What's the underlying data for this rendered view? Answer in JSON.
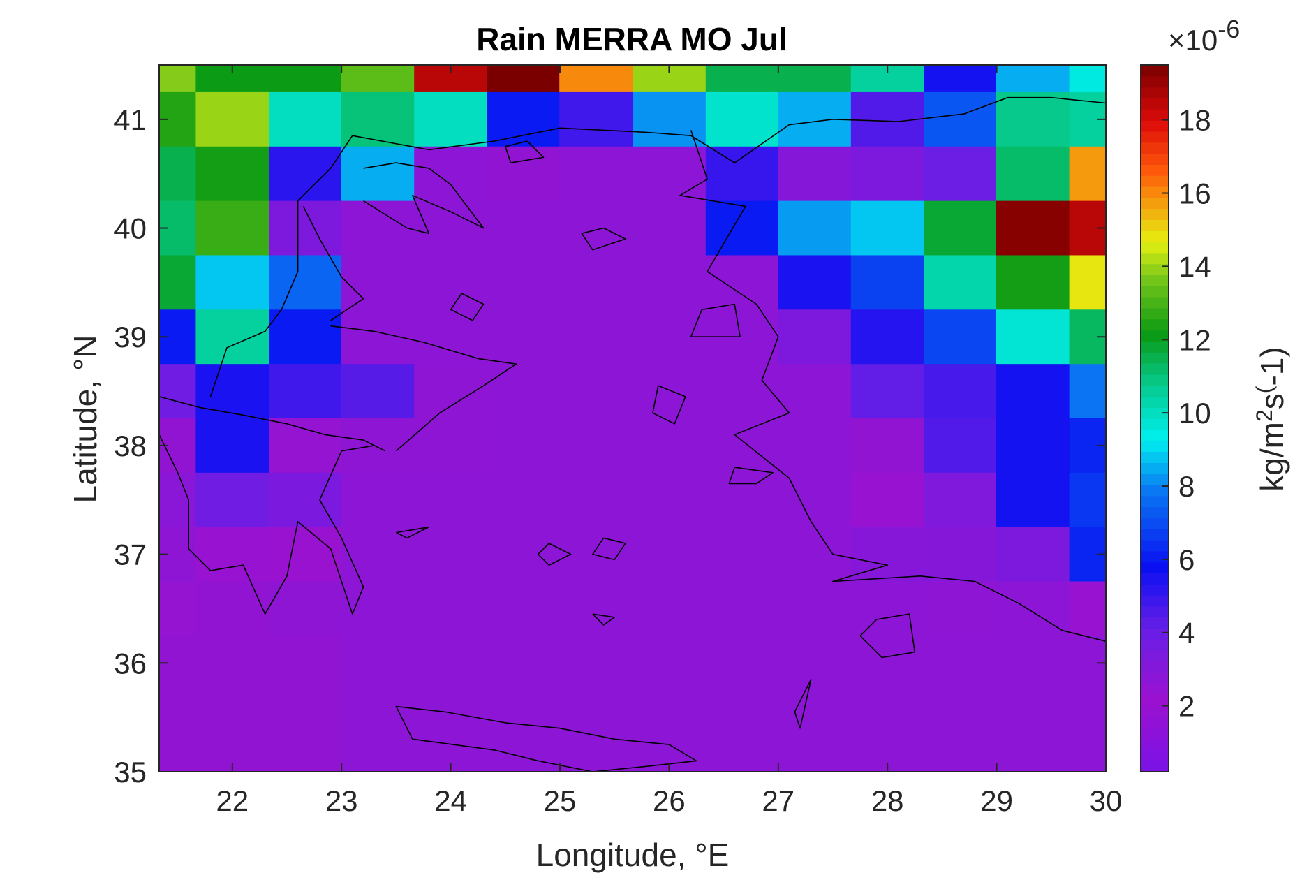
{
  "chart_data": {
    "type": "heatmap",
    "title": "Rain MERRA MO Jul",
    "xlabel": "Longitude, °E",
    "ylabel": "Latitude, °N",
    "xlim": [
      21.33,
      30.0
    ],
    "ylim": [
      35.0,
      41.5
    ],
    "x_ticks": [
      22,
      23,
      24,
      25,
      26,
      27,
      28,
      29,
      30
    ],
    "y_ticks": [
      35,
      36,
      37,
      38,
      39,
      40,
      41
    ],
    "x_tick_labels": [
      "22",
      "23",
      "24",
      "25",
      "26",
      "27",
      "28",
      "29",
      "30"
    ],
    "y_tick_labels": [
      "35",
      "36",
      "37",
      "38",
      "39",
      "40",
      "41"
    ],
    "grid": false,
    "colormap": "jet-like (violet to dark red)",
    "colorbar": {
      "label": "kg/m²s(-1)",
      "label_parts": [
        "kg/m",
        "2",
        "s",
        "(",
        "-1)"
      ],
      "exponent_prefix": "×10",
      "exponent": "-6",
      "range": [
        0.2,
        19.5
      ],
      "ticks": [
        2,
        4,
        6,
        8,
        10,
        12,
        14,
        16,
        18
      ],
      "tick_labels": [
        "2",
        "4",
        "6",
        "8",
        "10",
        "12",
        "14",
        "16",
        "18"
      ],
      "placement": "right"
    },
    "lon_centers": [
      21.33,
      22.0,
      22.67,
      23.33,
      24.0,
      24.67,
      25.33,
      26.0,
      26.67,
      27.33,
      28.0,
      28.67,
      29.33,
      30.0
    ],
    "lat_centers": [
      41.5,
      41.0,
      40.5,
      40.0,
      39.5,
      39.0,
      38.5,
      38.0,
      37.5,
      37.0,
      36.5,
      36.0,
      35.5,
      35.0
    ],
    "values_units": "1e-6 kg/m^2/s",
    "values": [
      [
        13.8,
        12.2,
        12.2,
        13.3,
        18.5,
        19.5,
        16.0,
        14.0,
        11.5,
        11.5,
        10.5,
        5.6,
        8.5,
        9.5
      ],
      [
        12.5,
        14.0,
        10.0,
        11.0,
        10.0,
        6.0,
        4.8,
        8.2,
        9.8,
        8.5,
        4.5,
        7.2,
        10.8,
        10.5
      ],
      [
        11.5,
        12.3,
        5.2,
        8.5,
        2.7,
        2.5,
        2.7,
        2.7,
        5.0,
        3.0,
        3.3,
        4.0,
        11.2,
        15.8
      ],
      [
        11.2,
        12.8,
        3.3,
        2.7,
        2.7,
        2.7,
        2.7,
        2.7,
        6.0,
        8.3,
        8.8,
        11.8,
        19.3,
        18.5
      ],
      [
        11.8,
        8.8,
        7.5,
        2.7,
        2.7,
        2.7,
        2.7,
        2.7,
        2.7,
        5.5,
        6.8,
        10.3,
        12.3,
        14.8
      ],
      [
        6.0,
        10.5,
        6.0,
        2.7,
        2.7,
        2.7,
        2.7,
        2.7,
        2.7,
        3.3,
        5.3,
        6.9,
        9.7,
        11.3
      ],
      [
        3.8,
        5.5,
        4.8,
        4.4,
        2.6,
        2.7,
        2.7,
        2.7,
        2.7,
        2.7,
        4.2,
        4.7,
        5.6,
        7.8
      ],
      [
        2.5,
        5.5,
        2.4,
        2.6,
        2.6,
        2.7,
        2.7,
        2.7,
        2.7,
        2.7,
        2.5,
        4.5,
        5.6,
        6.2
      ],
      [
        2.8,
        3.8,
        3.4,
        2.7,
        2.7,
        2.7,
        2.7,
        2.7,
        2.7,
        2.7,
        2.3,
        3.2,
        5.6,
        6.6
      ],
      [
        2.6,
        2.3,
        2.2,
        2.7,
        2.7,
        2.7,
        2.7,
        2.7,
        2.7,
        2.7,
        2.9,
        3.0,
        3.3,
        6.2
      ],
      [
        2.4,
        2.5,
        2.6,
        2.7,
        2.7,
        2.7,
        2.7,
        2.7,
        2.7,
        2.7,
        2.7,
        2.6,
        2.7,
        2.3
      ],
      [
        2.5,
        2.5,
        2.5,
        2.7,
        2.7,
        2.7,
        2.7,
        2.7,
        2.7,
        2.7,
        2.7,
        2.7,
        2.7,
        2.7
      ],
      [
        2.5,
        2.5,
        2.5,
        2.7,
        2.7,
        2.7,
        2.7,
        2.7,
        2.7,
        2.7,
        2.7,
        2.7,
        2.7,
        2.7
      ],
      [
        2.5,
        2.5,
        2.5,
        2.7,
        2.7,
        2.7,
        2.7,
        2.7,
        2.7,
        2.7,
        2.7,
        2.7,
        2.7,
        2.7
      ]
    ],
    "coastlines": [
      [
        [
          21.33,
          38.45
        ],
        [
          21.7,
          38.35
        ],
        [
          22.1,
          38.28
        ],
        [
          22.5,
          38.2
        ],
        [
          22.85,
          38.1
        ],
        [
          23.2,
          38.05
        ],
        [
          23.4,
          37.95
        ]
      ],
      [
        [
          21.33,
          38.1
        ],
        [
          21.5,
          37.75
        ],
        [
          21.6,
          37.5
        ],
        [
          21.6,
          37.05
        ],
        [
          21.8,
          36.85
        ],
        [
          22.1,
          36.9
        ],
        [
          22.3,
          36.45
        ],
        [
          22.5,
          36.8
        ],
        [
          22.6,
          37.3
        ],
        [
          22.9,
          37.05
        ],
        [
          23.1,
          36.45
        ],
        [
          23.2,
          36.7
        ],
        [
          23.0,
          37.15
        ],
        [
          22.8,
          37.5
        ],
        [
          23.0,
          37.95
        ],
        [
          23.3,
          38.0
        ]
      ],
      [
        [
          21.8,
          38.45
        ],
        [
          21.95,
          38.9
        ],
        [
          22.3,
          39.05
        ],
        [
          22.45,
          39.25
        ],
        [
          22.6,
          39.6
        ],
        [
          22.6,
          40.25
        ],
        [
          22.9,
          40.55
        ],
        [
          23.1,
          40.85
        ],
        [
          23.8,
          40.72
        ],
        [
          24.4,
          40.8
        ],
        [
          25.0,
          40.92
        ],
        [
          25.8,
          40.88
        ],
        [
          26.2,
          40.85
        ],
        [
          26.6,
          40.6
        ],
        [
          27.1,
          40.95
        ],
        [
          27.5,
          41.0
        ],
        [
          28.1,
          40.98
        ],
        [
          28.7,
          41.05
        ],
        [
          29.1,
          41.2
        ],
        [
          29.5,
          41.2
        ],
        [
          30.0,
          41.15
        ]
      ],
      [
        [
          23.5,
          37.95
        ],
        [
          23.9,
          38.3
        ],
        [
          24.3,
          38.55
        ],
        [
          24.6,
          38.75
        ],
        [
          24.25,
          38.8
        ],
        [
          23.75,
          38.95
        ],
        [
          23.3,
          39.05
        ],
        [
          22.9,
          39.1
        ]
      ],
      [
        [
          22.9,
          39.15
        ],
        [
          23.2,
          39.35
        ],
        [
          23.0,
          39.55
        ],
        [
          22.8,
          39.9
        ],
        [
          22.65,
          40.2
        ]
      ],
      [
        [
          23.2,
          40.25
        ],
        [
          23.6,
          40.0
        ],
        [
          23.8,
          39.95
        ],
        [
          23.65,
          40.3
        ],
        [
          24.0,
          40.15
        ],
        [
          24.3,
          40.0
        ],
        [
          24.0,
          40.4
        ],
        [
          23.8,
          40.55
        ],
        [
          23.5,
          40.6
        ],
        [
          23.2,
          40.55
        ]
      ],
      [
        [
          26.2,
          40.9
        ],
        [
          26.35,
          40.45
        ],
        [
          26.1,
          40.3
        ],
        [
          26.7,
          40.2
        ],
        [
          26.35,
          39.6
        ],
        [
          26.8,
          39.3
        ],
        [
          27.0,
          39.0
        ],
        [
          26.85,
          38.6
        ],
        [
          27.1,
          38.3
        ],
        [
          26.6,
          38.1
        ],
        [
          27.1,
          37.7
        ],
        [
          27.3,
          37.3
        ],
        [
          27.5,
          37.0
        ],
        [
          28.0,
          36.9
        ],
        [
          27.5,
          36.75
        ],
        [
          28.3,
          36.8
        ],
        [
          28.8,
          36.75
        ],
        [
          29.2,
          36.55
        ],
        [
          29.6,
          36.3
        ],
        [
          30.0,
          36.2
        ]
      ],
      [
        [
          24.4,
          35.2
        ],
        [
          23.65,
          35.3
        ],
        [
          23.5,
          35.6
        ],
        [
          23.95,
          35.55
        ],
        [
          24.5,
          35.45
        ],
        [
          25.0,
          35.4
        ],
        [
          25.5,
          35.3
        ],
        [
          26.0,
          35.25
        ],
        [
          26.25,
          35.1
        ],
        [
          25.8,
          35.05
        ],
        [
          25.3,
          35.0
        ],
        [
          24.8,
          35.1
        ],
        [
          24.4,
          35.2
        ]
      ],
      [
        [
          27.9,
          36.4
        ],
        [
          28.2,
          36.45
        ],
        [
          28.25,
          36.1
        ],
        [
          27.95,
          36.05
        ],
        [
          27.75,
          36.25
        ],
        [
          27.9,
          36.4
        ]
      ],
      [
        [
          26.3,
          39.25
        ],
        [
          26.6,
          39.3
        ],
        [
          26.65,
          39.0
        ],
        [
          26.2,
          39.0
        ],
        [
          26.3,
          39.25
        ]
      ],
      [
        [
          25.9,
          38.55
        ],
        [
          26.15,
          38.45
        ],
        [
          26.05,
          38.2
        ],
        [
          25.85,
          38.3
        ],
        [
          25.9,
          38.55
        ]
      ],
      [
        [
          26.6,
          37.8
        ],
        [
          26.95,
          37.75
        ],
        [
          26.8,
          37.65
        ],
        [
          26.55,
          37.65
        ],
        [
          26.6,
          37.8
        ]
      ],
      [
        [
          24.7,
          40.8
        ],
        [
          24.85,
          40.65
        ],
        [
          24.55,
          40.6
        ],
        [
          24.5,
          40.75
        ],
        [
          24.7,
          40.8
        ]
      ],
      [
        [
          25.4,
          40.0
        ],
        [
          25.6,
          39.9
        ],
        [
          25.3,
          39.8
        ],
        [
          25.2,
          39.95
        ],
        [
          25.4,
          40.0
        ]
      ],
      [
        [
          24.1,
          39.4
        ],
        [
          24.3,
          39.3
        ],
        [
          24.2,
          39.15
        ],
        [
          24.0,
          39.25
        ],
        [
          24.1,
          39.4
        ]
      ],
      [
        [
          25.4,
          37.15
        ],
        [
          25.6,
          37.1
        ],
        [
          25.5,
          36.95
        ],
        [
          25.3,
          37.0
        ],
        [
          25.4,
          37.15
        ]
      ],
      [
        [
          24.9,
          37.1
        ],
        [
          25.1,
          37.0
        ],
        [
          24.9,
          36.9
        ],
        [
          24.8,
          37.0
        ],
        [
          24.9,
          37.1
        ]
      ],
      [
        [
          25.3,
          36.45
        ],
        [
          25.5,
          36.42
        ],
        [
          25.4,
          36.35
        ],
        [
          25.3,
          36.45
        ]
      ],
      [
        [
          27.15,
          35.55
        ],
        [
          27.3,
          35.85
        ],
        [
          27.2,
          35.4
        ],
        [
          27.15,
          35.55
        ]
      ],
      [
        [
          23.5,
          37.2
        ],
        [
          23.8,
          37.25
        ],
        [
          23.6,
          37.15
        ],
        [
          23.5,
          37.2
        ]
      ]
    ]
  }
}
